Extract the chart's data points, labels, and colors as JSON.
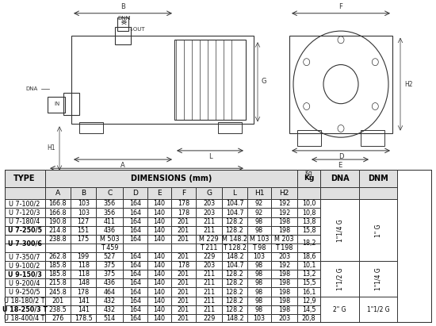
{
  "table_header_row1": [
    "TYPE",
    "DIMENSIONS (mm)",
    "",
    "",
    "",
    "",
    "",
    "",
    "",
    "",
    "",
    "Kg",
    "DNA",
    "DNM"
  ],
  "table_header_row2": [
    "",
    "A",
    "B",
    "C",
    "D",
    "E",
    "F",
    "G",
    "L",
    "H1",
    "H2",
    "",
    "",
    ""
  ],
  "rows": [
    [
      "U 7-100/2",
      "166.8",
      "103",
      "356",
      "164",
      "140",
      "178",
      "203",
      "104.7",
      "92",
      "192",
      "10,0",
      "",
      ""
    ],
    [
      "U 7-120/3",
      "166.8",
      "103",
      "356",
      "164",
      "140",
      "178",
      "203",
      "104.7",
      "92",
      "192",
      "10,8",
      "",
      ""
    ],
    [
      "U 7-180/4",
      "190.8",
      "127",
      "411",
      "164",
      "140",
      "201",
      "211",
      "128.2",
      "98",
      "198",
      "13,8",
      "",
      ""
    ],
    [
      "U 7-250/5",
      "214.8",
      "151",
      "436",
      "164",
      "140",
      "201",
      "211",
      "128.2",
      "98",
      "198",
      "15,8",
      "1\"1/4 G",
      "1\" G"
    ],
    [
      "U 7-300/6_M",
      "238.8",
      "175",
      "M 503",
      "164",
      "140",
      "201",
      "M 229",
      "M 148.2",
      "M 103",
      "M 203",
      "18,2",
      "",
      ""
    ],
    [
      "U 7-300/6_T",
      "",
      "",
      "T 459",
      "",
      "",
      "",
      "T 211",
      "T 128.2",
      "T 98",
      "T 198",
      "",
      "",
      ""
    ],
    [
      "U 7-350/7",
      "262.8",
      "199",
      "527",
      "164",
      "140",
      "201",
      "229",
      "148.2",
      "103",
      "203",
      "18,6",
      "",
      ""
    ],
    [
      "U 9-100/2",
      "185.8",
      "118",
      "375",
      "164",
      "140",
      "178",
      "203",
      "104.7",
      "98",
      "192",
      "10,1",
      "",
      ""
    ],
    [
      "U 9-150/3",
      "185.8",
      "118",
      "375",
      "164",
      "140",
      "201",
      "211",
      "128.2",
      "98",
      "198",
      "13,2",
      "1\"1/2 G",
      "1\"1/4 G"
    ],
    [
      "U 9-200/4",
      "215.8",
      "148",
      "436",
      "164",
      "140",
      "201",
      "211",
      "128.2",
      "98",
      "198",
      "15,5",
      "",
      ""
    ],
    [
      "U 9-250/5",
      "245.8",
      "178",
      "464",
      "164",
      "140",
      "201",
      "211",
      "128.2",
      "98",
      "198",
      "16,1",
      "",
      ""
    ],
    [
      "U 18-180/2 T",
      "201",
      "141",
      "432",
      "164",
      "140",
      "201",
      "211",
      "128.2",
      "98",
      "198",
      "12,9",
      "",
      ""
    ],
    [
      "U 18-250/3 T",
      "238.5",
      "141",
      "432",
      "164",
      "140",
      "201",
      "211",
      "128.2",
      "98",
      "198",
      "14,5",
      "2\" G",
      "1\"1/2 G"
    ],
    [
      "U 18-400/4 T",
      "276",
      "178.5",
      "514",
      "164",
      "140",
      "201",
      "229",
      "148.2",
      "103",
      "203",
      "20,8",
      "",
      ""
    ]
  ],
  "dna_spans": [
    {
      "label": "1\"1/4 G",
      "start": 0,
      "end": 6
    },
    {
      "label": "1\"1/2 G",
      "start": 7,
      "end": 10
    },
    {
      "label": "2\" G",
      "start": 11,
      "end": 13
    }
  ],
  "dnm_spans": [
    {
      "label": "1\" G",
      "start": 0,
      "end": 6
    },
    {
      "label": "1\"1/4 G",
      "start": 7,
      "end": 10
    },
    {
      "label": "1\"1/2 G",
      "start": 11,
      "end": 13
    }
  ],
  "bg_color": "#ffffff",
  "header_bg": "#e8e8e8",
  "border_color": "#333333",
  "text_color": "#000000",
  "bold_rows": [
    "U 7-250/5",
    "U 9-150/3",
    "U 18-250/3 T"
  ]
}
